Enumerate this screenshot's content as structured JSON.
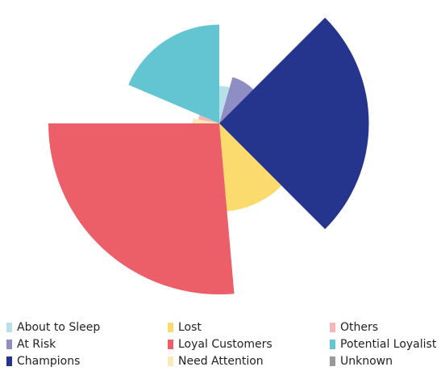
{
  "chart_data": {
    "type": "polar-area",
    "title": "",
    "unit": "",
    "series": [
      {
        "name": "About to Sleep",
        "color": "#b7e1e8",
        "value": 14,
        "start_deg": 0,
        "end_deg": 16
      },
      {
        "name": "At Risk",
        "color": "#8e8ec4",
        "value": 18,
        "start_deg": 16,
        "end_deg": 45
      },
      {
        "name": "Champions",
        "color": "#25348d",
        "value": 56,
        "start_deg": 45,
        "end_deg": 135
      },
      {
        "name": "Lost",
        "color": "#fbdb6e",
        "value": 33,
        "start_deg": 135,
        "end_deg": 175
      },
      {
        "name": "Loyal Customers",
        "color": "#ec5f69",
        "value": 64,
        "start_deg": 175,
        "end_deg": 270
      },
      {
        "name": "Need Attention",
        "color": "#fcebb8",
        "value": 10,
        "start_deg": 270,
        "end_deg": 281
      },
      {
        "name": "Others",
        "color": "#f6b6b6",
        "value": 8,
        "start_deg": 281,
        "end_deg": 293
      },
      {
        "name": "Potential Loyalist",
        "color": "#63c4d2",
        "value": 37,
        "start_deg": 293,
        "end_deg": 360
      },
      {
        "name": "Unknown",
        "color": "#999999",
        "value": 0,
        "start_deg": 0,
        "end_deg": 0
      }
    ],
    "legend": {
      "position": "bottom",
      "columns": 3
    }
  }
}
